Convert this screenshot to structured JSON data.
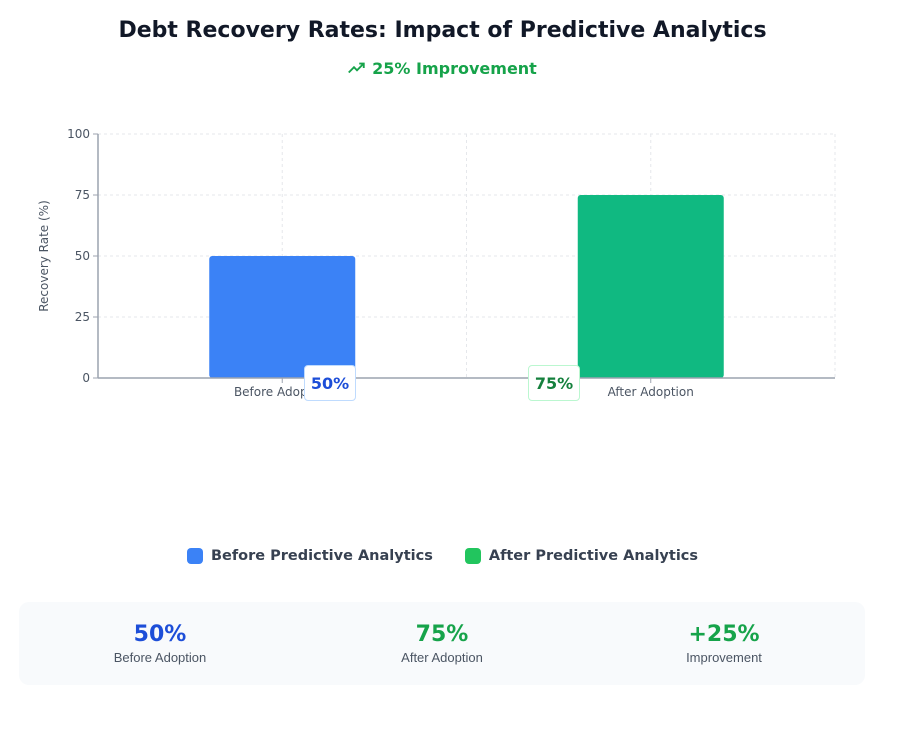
{
  "title": "Debt Recovery Rates: Impact of Predictive Analytics",
  "subtitle": "25% Improvement",
  "subtitle_icon": "trending-up-icon",
  "colors": {
    "before": "#3b82f6",
    "after": "#10b981",
    "legend_after": "#22c55e",
    "stat_before": "#1d4ed8",
    "stat_green": "#16a34a"
  },
  "chart_data": {
    "type": "bar",
    "categories": [
      "Before Adoption",
      "After Adoption"
    ],
    "values": [
      50,
      75
    ],
    "data_labels": [
      "50%",
      "75%"
    ],
    "ylabel": "Recovery Rate (%)",
    "ylim": [
      0,
      100
    ],
    "yticks": [
      "0",
      "25",
      "50",
      "75",
      "100"
    ],
    "grid": true,
    "legend_position": "bottom"
  },
  "legend": [
    {
      "label": "Before Predictive Analytics"
    },
    {
      "label": "After Predictive Analytics"
    }
  ],
  "stats": [
    {
      "value": "50%",
      "label": "Before Adoption"
    },
    {
      "value": "75%",
      "label": "After Adoption"
    },
    {
      "value": "+25%",
      "label": "Improvement"
    }
  ]
}
